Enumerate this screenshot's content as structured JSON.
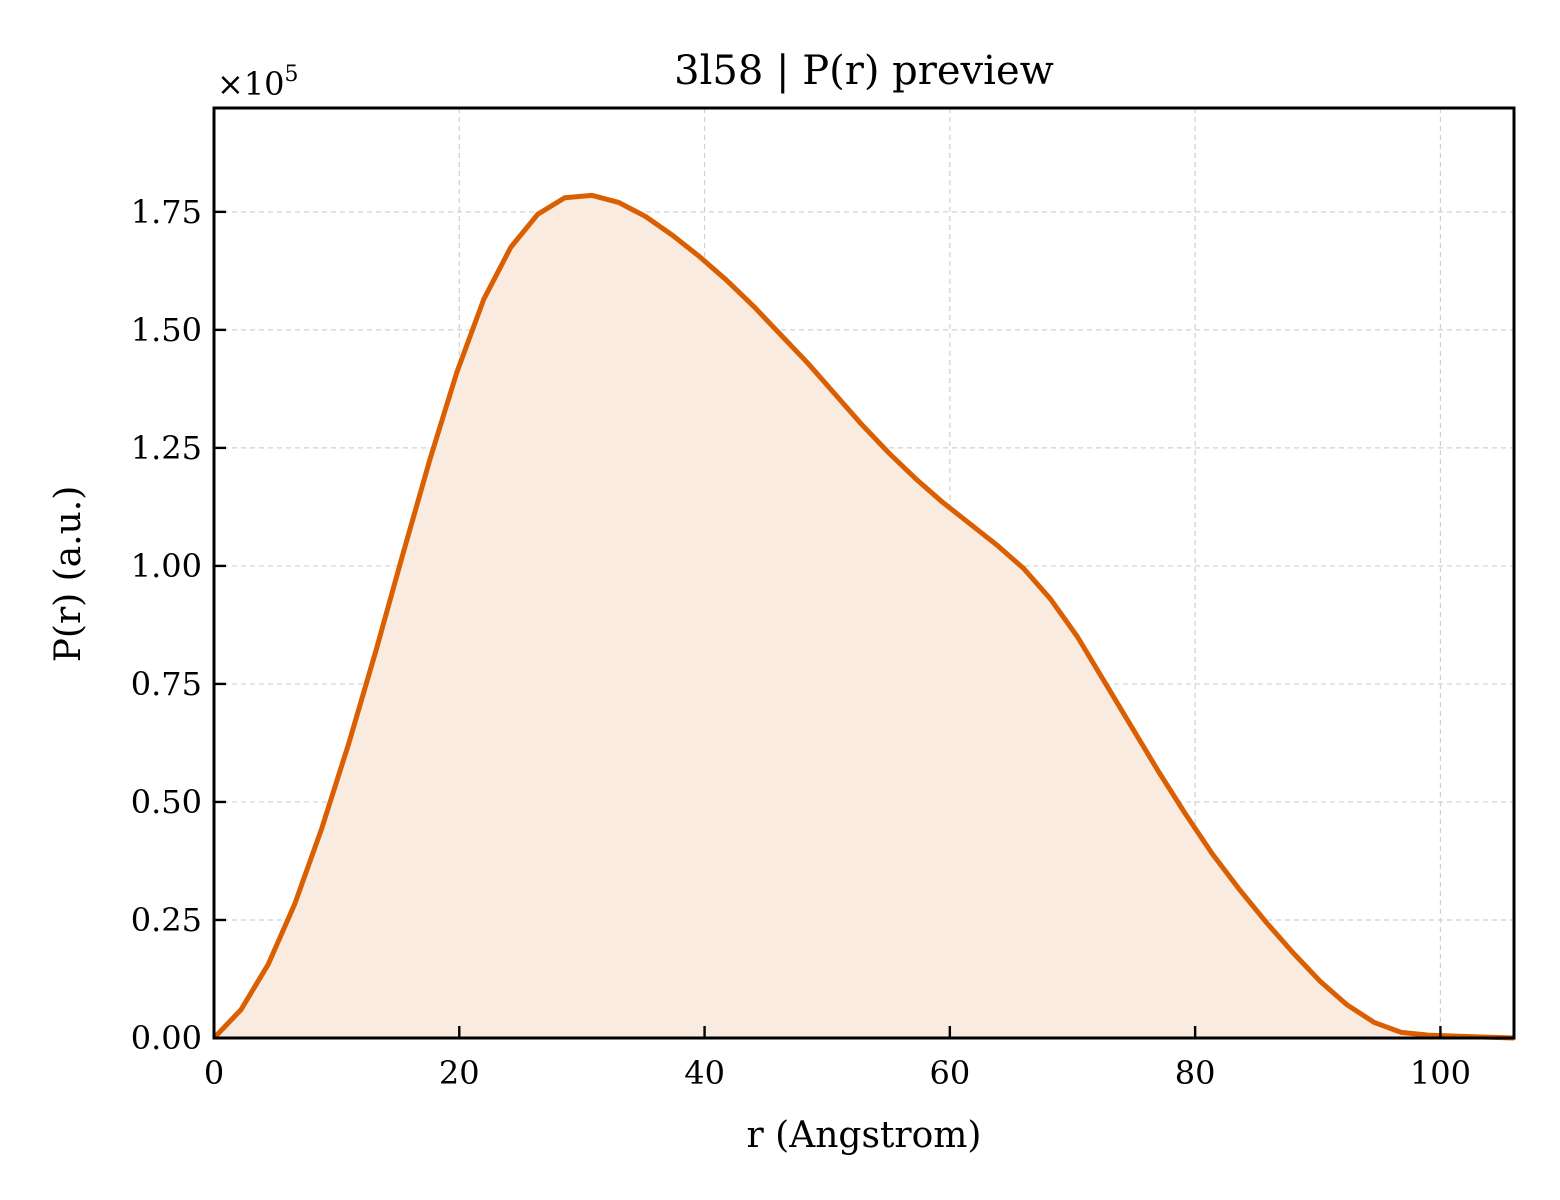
{
  "chart_data": {
    "type": "area",
    "title": "3l58 | P(r) preview",
    "xlabel": "r (Angstrom)",
    "ylabel": "P(r) (a.u.)",
    "y_scale_label": "×10",
    "y_scale_exponent": "5",
    "xlim": [
      0,
      106
    ],
    "ylim": [
      0,
      1.97
    ],
    "xticks": [
      0,
      20,
      40,
      60,
      80,
      100
    ],
    "xtick_labels": [
      "0",
      "20",
      "40",
      "60",
      "80",
      "100"
    ],
    "yticks": [
      0,
      0.25,
      0.5,
      0.75,
      1.0,
      1.25,
      1.5,
      1.75
    ],
    "ytick_labels": [
      "0.00",
      "0.25",
      "0.50",
      "0.75",
      "1.00",
      "1.25",
      "1.50",
      "1.75"
    ],
    "grid": true,
    "line_color": "#d95f02",
    "fill_color": "#f9ebe0",
    "series": [
      {
        "x": [
          0,
          2.2,
          4.4,
          6.6,
          8.8,
          11.0,
          13.2,
          15.4,
          17.6,
          19.8,
          22.0,
          24.2,
          26.4,
          28.6,
          30.8,
          33.0,
          35.2,
          37.4,
          39.6,
          41.8,
          44.0,
          46.2,
          48.4,
          50.6,
          52.8,
          55.0,
          57.2,
          59.4,
          61.6,
          63.8,
          66.0,
          68.2,
          70.4,
          72.6,
          74.8,
          77.0,
          79.2,
          81.4,
          83.6,
          85.8,
          88.0,
          90.2,
          92.4,
          94.6,
          96.8,
          99.0,
          101.2,
          103.4,
          106.0
        ],
        "y": [
          0,
          0.06,
          0.155,
          0.285,
          0.445,
          0.625,
          0.82,
          1.025,
          1.225,
          1.41,
          1.565,
          1.675,
          1.745,
          1.78,
          1.785,
          1.77,
          1.74,
          1.7,
          1.655,
          1.605,
          1.55,
          1.49,
          1.43,
          1.365,
          1.3,
          1.24,
          1.185,
          1.135,
          1.09,
          1.045,
          0.995,
          0.93,
          0.85,
          0.755,
          0.66,
          0.565,
          0.475,
          0.39,
          0.315,
          0.245,
          0.18,
          0.12,
          0.07,
          0.033,
          0.012,
          0.006,
          0.004,
          0.002,
          0.0
        ]
      }
    ]
  }
}
